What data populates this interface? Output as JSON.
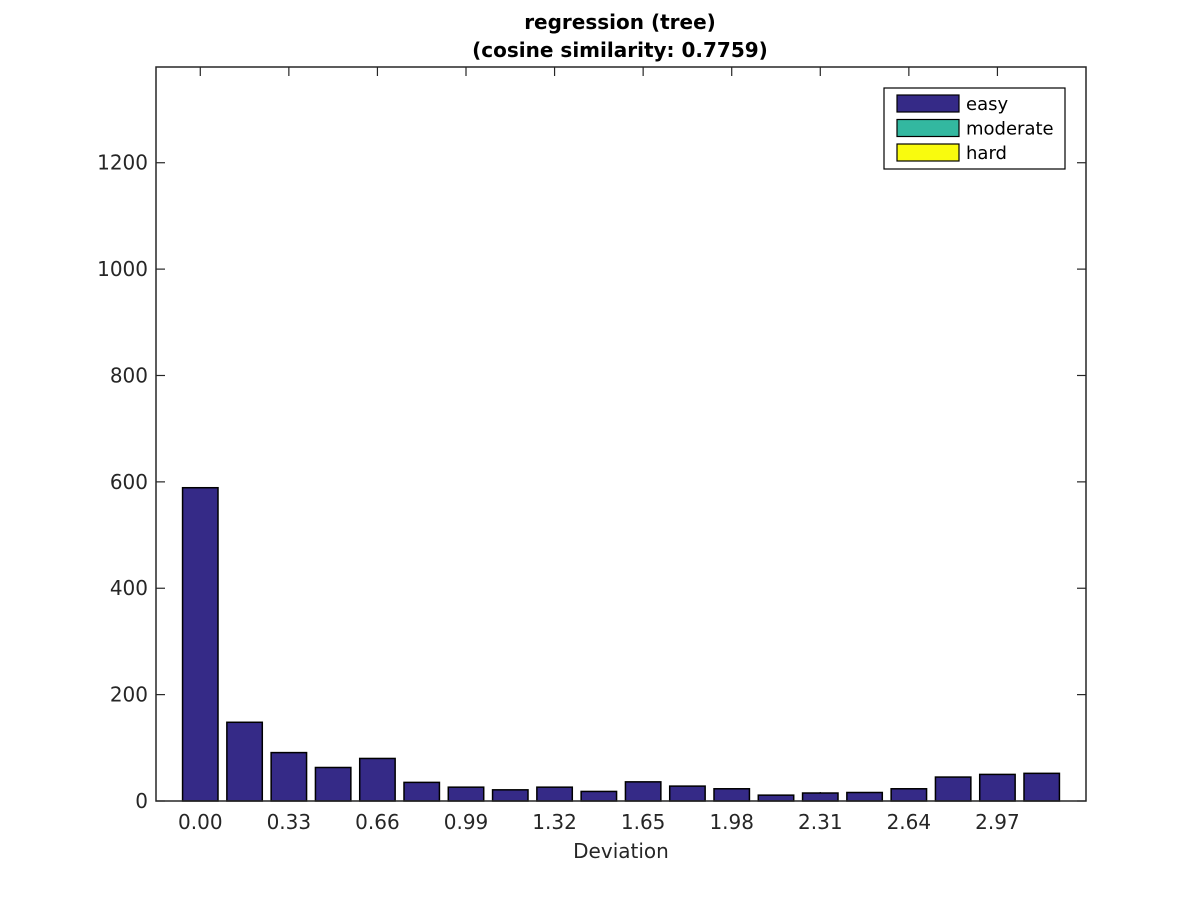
{
  "chart_data": {
    "type": "bar",
    "title": [
      "regression (tree)",
      "(cosine similarity: 0.7759)"
    ],
    "xlabel": "Deviation",
    "ylabel": "",
    "ylim": [
      0,
      1380
    ],
    "yticks": [
      0,
      200,
      400,
      600,
      800,
      1000,
      1200
    ],
    "x_ticklabels": [
      "0.00",
      "0.33",
      "0.66",
      "0.99",
      "1.32",
      "1.65",
      "1.98",
      "2.31",
      "2.64",
      "2.97"
    ],
    "x": [
      0.0,
      0.165,
      0.33,
      0.495,
      0.66,
      0.825,
      0.99,
      1.155,
      1.32,
      1.485,
      1.65,
      1.815,
      1.98,
      2.145,
      2.31,
      2.475,
      2.64,
      2.805,
      2.97,
      3.135
    ],
    "series": [
      {
        "name": "easy",
        "color": "#352a87",
        "values": [
          589,
          148,
          91,
          63,
          80,
          35,
          26,
          21,
          26,
          18,
          36,
          28,
          23,
          11,
          15,
          16,
          23,
          45,
          50,
          52
        ]
      },
      {
        "name": "moderate",
        "color": "#33b8a0",
        "values": [
          0,
          0,
          0,
          0,
          0,
          0,
          0,
          0,
          0,
          0,
          0,
          0,
          0,
          0,
          0,
          0,
          0,
          0,
          0,
          0
        ]
      },
      {
        "name": "hard",
        "color": "#f9fb0e",
        "values": [
          0,
          0,
          0,
          0,
          0,
          0,
          0,
          0,
          0,
          0,
          0,
          0,
          0,
          0,
          0,
          0,
          0,
          0,
          0,
          0
        ]
      }
    ],
    "legend_position": "top-right",
    "grid": false
  }
}
